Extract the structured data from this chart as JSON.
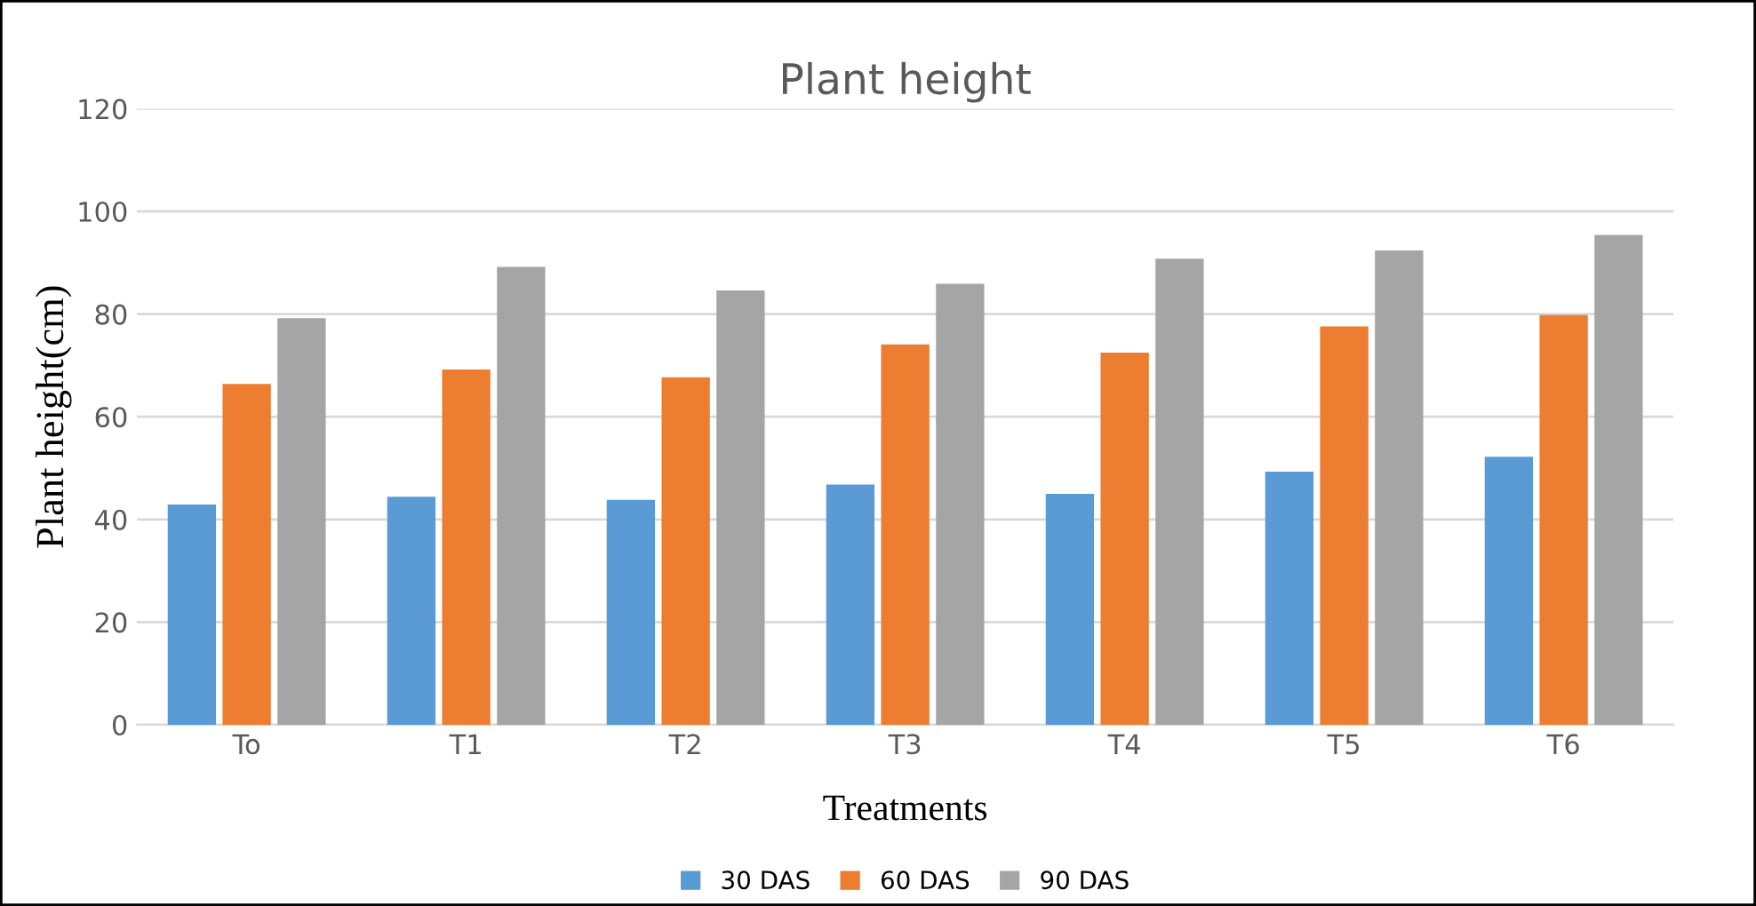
{
  "chart_data": {
    "type": "bar",
    "title": "Plant height",
    "xlabel": "Treatments",
    "ylabel": "Plant height(cm)",
    "categories": [
      "To",
      "T1",
      "T2",
      "T3",
      "T4",
      "T5",
      "T6"
    ],
    "series": [
      {
        "name": "30 DAS",
        "color": "#5b9bd5",
        "values": [
          42.9,
          44.4,
          43.8,
          46.8,
          45.0,
          49.3,
          52.2
        ]
      },
      {
        "name": "60 DAS",
        "color": "#ed7d31",
        "values": [
          66.4,
          69.2,
          67.7,
          74.1,
          72.5,
          77.6,
          79.8
        ]
      },
      {
        "name": "90 DAS",
        "color": "#a5a5a5",
        "values": [
          79.2,
          89.2,
          84.6,
          85.9,
          90.8,
          92.4,
          95.4
        ]
      }
    ],
    "ylim": [
      0,
      120
    ],
    "yticks": [
      0,
      20,
      40,
      60,
      80,
      100,
      120
    ],
    "grid": "y",
    "legend": "bottom"
  }
}
